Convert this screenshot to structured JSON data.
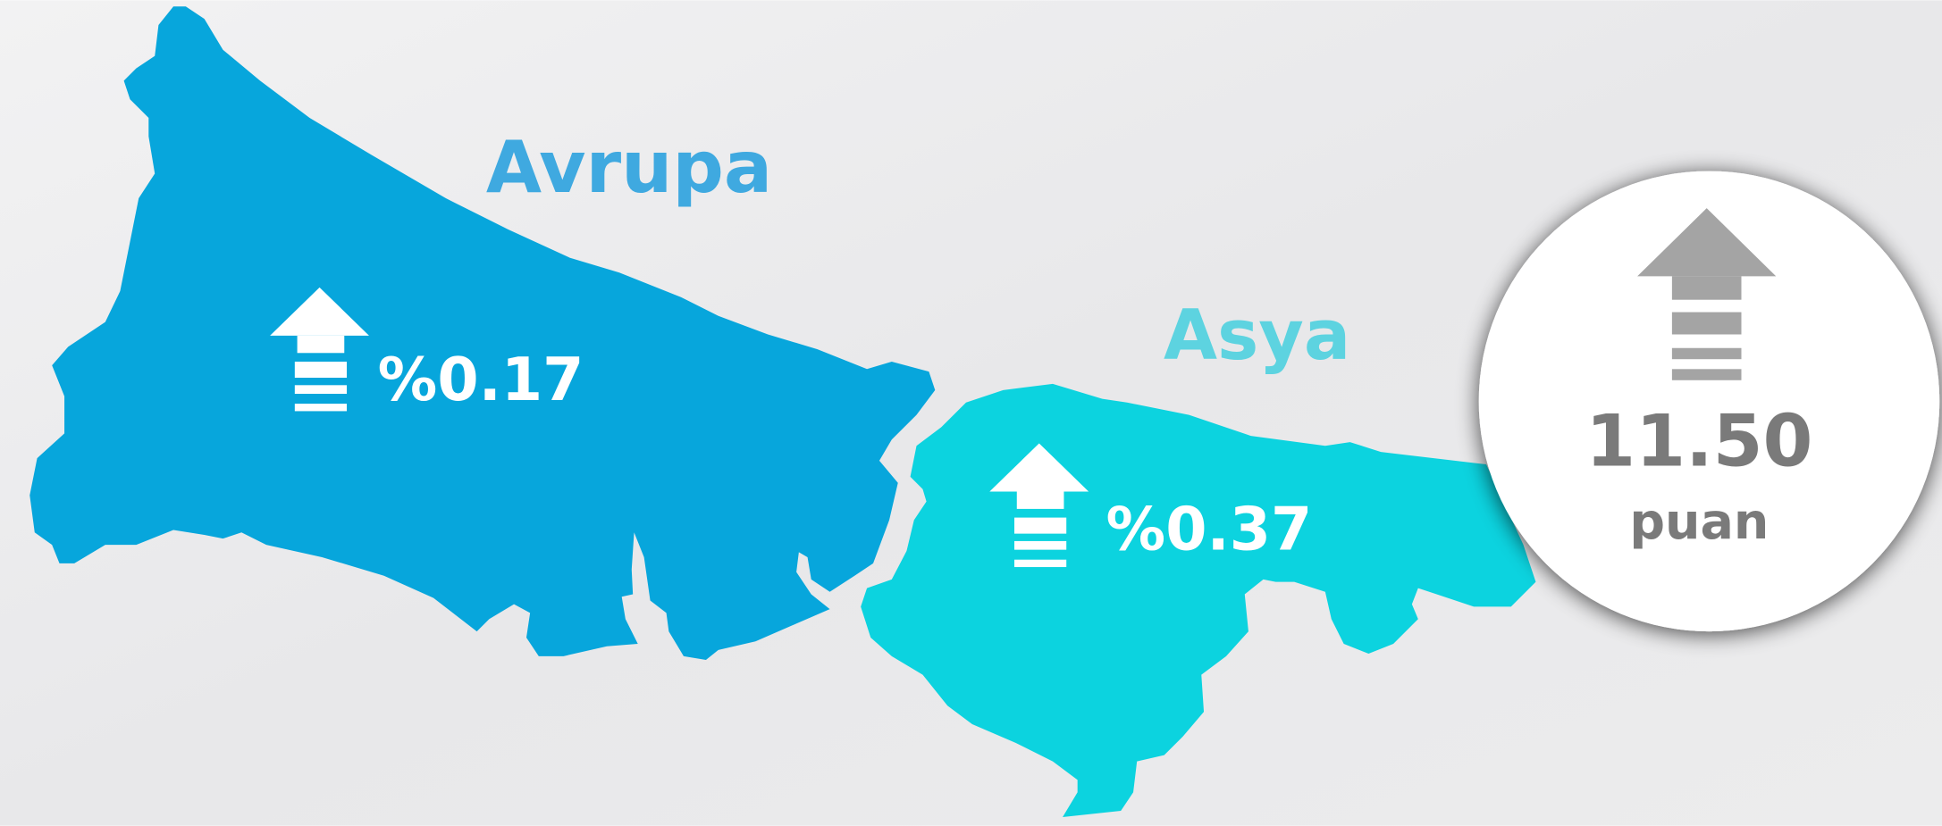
{
  "regions": [
    {
      "name": "Avrupa",
      "change": "%0.17"
    },
    {
      "name": "Asya",
      "change": "%0.37"
    }
  ],
  "score": {
    "value": "11.50",
    "unit": "puan"
  }
}
